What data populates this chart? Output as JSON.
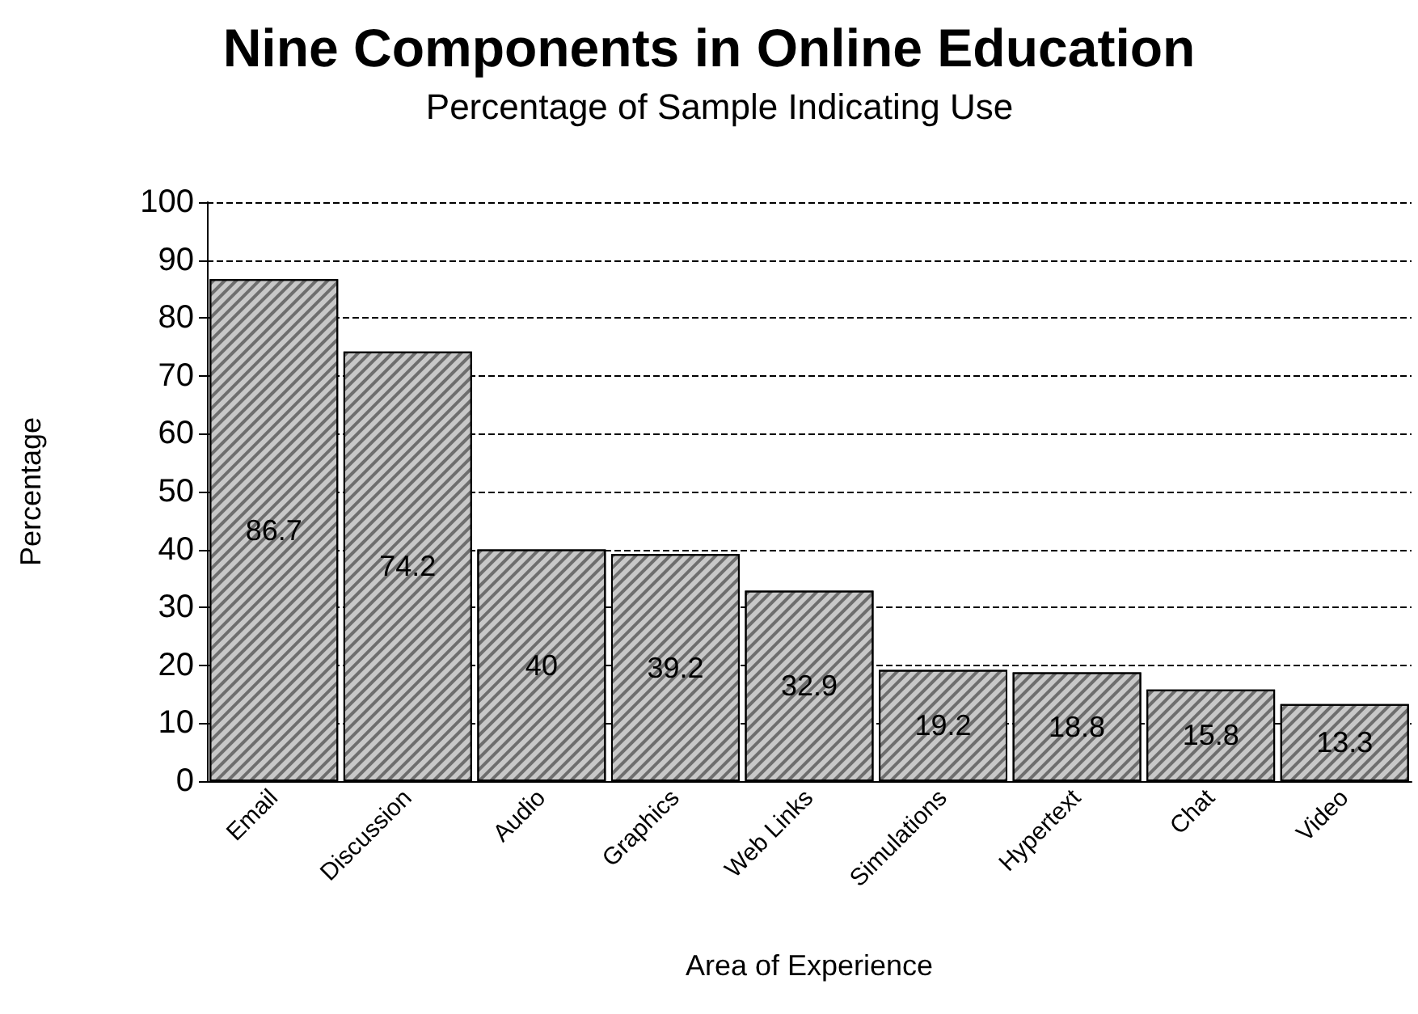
{
  "chart_data": {
    "type": "bar",
    "title": "Nine Components in Online Education",
    "subtitle": "Percentage of Sample Indicating Use",
    "xlabel": "Area of Experience",
    "ylabel": "Percentage",
    "categories": [
      "Email",
      "Discussion",
      "Audio",
      "Graphics",
      "Web Links",
      "Simulations",
      "Hypertext",
      "Chat",
      "Video"
    ],
    "values": [
      86.7,
      74.2,
      40,
      39.2,
      32.9,
      19.2,
      18.8,
      15.8,
      13.3
    ],
    "color": "#c8c8c8",
    "ylim": [
      0,
      100
    ],
    "yticks": [
      0,
      10,
      20,
      30,
      40,
      50,
      60,
      70,
      80,
      90,
      100
    ],
    "grid": "y",
    "data_labels": true
  }
}
